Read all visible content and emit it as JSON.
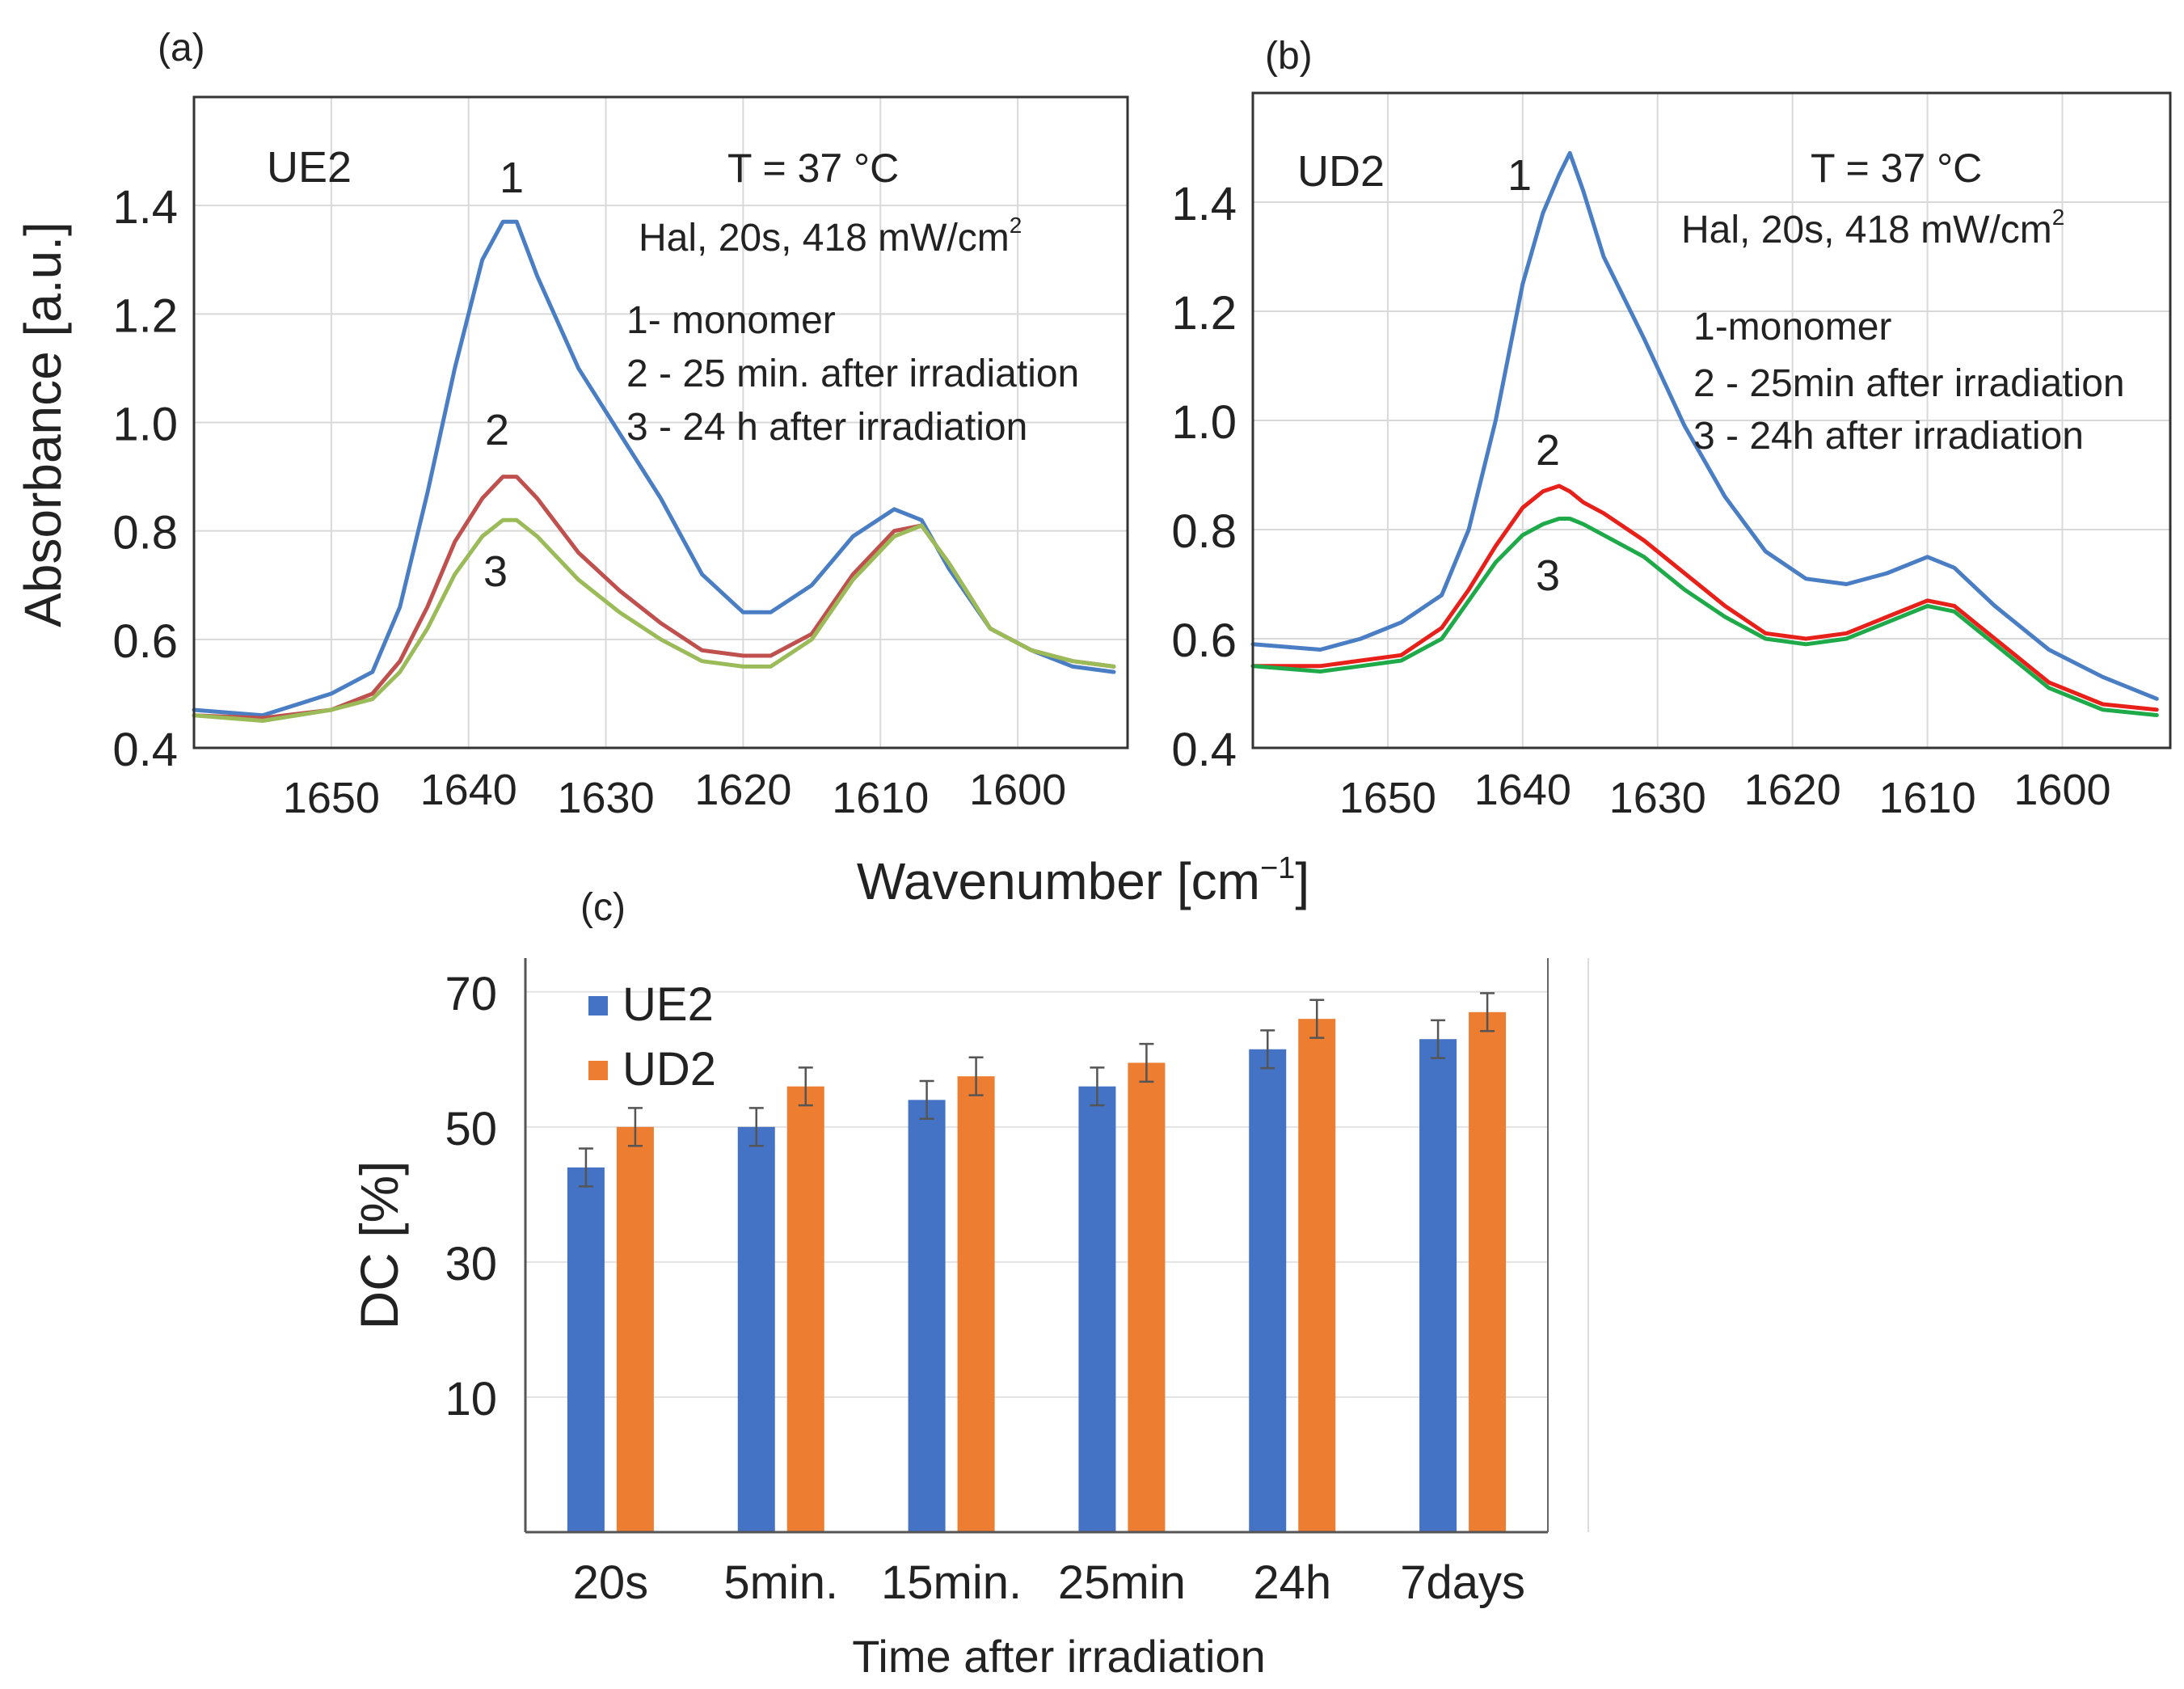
{
  "shared": {
    "xlabel_main": "Wavenumber [cm",
    "xlabel_sup": "−1",
    "xlabel_end": "]",
    "ylabel_ab": "Absorbance [a.u.]"
  },
  "chart_data": [
    {
      "type": "line",
      "panel": "(a)",
      "sample": "UE2",
      "condition_temp": "T = 37 °C",
      "condition_light": "Hal, 20s,  418 mW/cm",
      "condition_light_sup": "2",
      "legend": [
        "1- monomer",
        "2 - 25 min. after irradiation",
        "3 - 24 h after irradiation"
      ],
      "curve_labels": [
        "1",
        "2",
        "3"
      ],
      "xlabel": "Wavenumber [cm⁻¹]",
      "ylabel": "Absorbance [a.u.]",
      "xlim": [
        1660,
        1592
      ],
      "ylim": [
        0.4,
        1.6
      ],
      "x_ticks": [
        "1650",
        "1640",
        "1630",
        "1620",
        "1610",
        "1600"
      ],
      "y_ticks": [
        "0.4",
        "0.6",
        "0.8",
        "1.0",
        "1.2",
        "1.4"
      ],
      "series": [
        {
          "name": "1",
          "color": "#4a7ec4",
          "x": [
            1660,
            1655,
            1650,
            1647,
            1645,
            1643,
            1641,
            1639,
            1637.5,
            1636.5,
            1635,
            1632,
            1629,
            1626,
            1623,
            1620,
            1618,
            1615,
            1612,
            1609,
            1607,
            1605,
            1602,
            1599,
            1596,
            1593
          ],
          "y": [
            0.47,
            0.46,
            0.5,
            0.54,
            0.66,
            0.87,
            1.1,
            1.3,
            1.37,
            1.37,
            1.27,
            1.1,
            0.98,
            0.86,
            0.72,
            0.65,
            0.65,
            0.7,
            0.79,
            0.84,
            0.82,
            0.73,
            0.62,
            0.58,
            0.55,
            0.54
          ]
        },
        {
          "name": "2",
          "color": "#c0504d",
          "x": [
            1660,
            1655,
            1650,
            1647,
            1645,
            1643,
            1641,
            1639,
            1637.5,
            1636.5,
            1635,
            1632,
            1629,
            1626,
            1623,
            1620,
            1618,
            1615,
            1612,
            1609,
            1607,
            1605,
            1602,
            1599,
            1596,
            1593
          ],
          "y": [
            0.46,
            0.455,
            0.47,
            0.5,
            0.56,
            0.66,
            0.78,
            0.86,
            0.9,
            0.9,
            0.86,
            0.76,
            0.69,
            0.63,
            0.58,
            0.57,
            0.57,
            0.61,
            0.72,
            0.8,
            0.81,
            0.74,
            0.62,
            0.58,
            0.56,
            0.55
          ]
        },
        {
          "name": "3",
          "color": "#9bbb59",
          "x": [
            1660,
            1655,
            1650,
            1647,
            1645,
            1643,
            1641,
            1639,
            1637.5,
            1636.5,
            1635,
            1632,
            1629,
            1626,
            1623,
            1620,
            1618,
            1615,
            1612,
            1609,
            1607,
            1605,
            1602,
            1599,
            1596,
            1593
          ],
          "y": [
            0.46,
            0.45,
            0.47,
            0.49,
            0.54,
            0.62,
            0.72,
            0.79,
            0.82,
            0.82,
            0.79,
            0.71,
            0.65,
            0.6,
            0.56,
            0.55,
            0.55,
            0.6,
            0.71,
            0.79,
            0.81,
            0.74,
            0.62,
            0.58,
            0.56,
            0.55
          ]
        }
      ]
    },
    {
      "type": "line",
      "panel": "(b)",
      "sample": "UD2",
      "condition_temp": "T = 37 °C",
      "condition_light": "Hal, 20s,  418 mW/cm",
      "condition_light_sup": "2",
      "legend": [
        "1-monomer",
        "2 - 25min after irradiation",
        "3 - 24h after irradiation"
      ],
      "curve_labels": [
        "1",
        "2",
        "3"
      ],
      "xlabel": "Wavenumber [cm⁻¹]",
      "ylabel": "",
      "xlim": [
        1660,
        1592
      ],
      "ylim": [
        0.4,
        1.6
      ],
      "x_ticks": [
        "1650",
        "1640",
        "1630",
        "1620",
        "1610",
        "1600"
      ],
      "y_ticks": [
        "0.4",
        "0.6",
        "0.8",
        "1.0",
        "1.2",
        "1.4"
      ],
      "series": [
        {
          "name": "1",
          "color": "#4a7ec4",
          "x": [
            1660,
            1655,
            1652,
            1649,
            1646,
            1644,
            1642,
            1640,
            1638.5,
            1637.3,
            1636.5,
            1635.5,
            1634,
            1631,
            1628,
            1625,
            1622,
            1619,
            1616,
            1613,
            1610,
            1608,
            1605,
            1601,
            1597,
            1593
          ],
          "y": [
            0.59,
            0.58,
            0.6,
            0.63,
            0.68,
            0.8,
            1.0,
            1.25,
            1.38,
            1.45,
            1.49,
            1.42,
            1.3,
            1.15,
            0.99,
            0.86,
            0.76,
            0.71,
            0.7,
            0.72,
            0.75,
            0.73,
            0.66,
            0.58,
            0.53,
            0.49
          ]
        },
        {
          "name": "2",
          "color": "#e8201a",
          "x": [
            1660,
            1655,
            1652,
            1649,
            1646,
            1644,
            1642,
            1640,
            1638.5,
            1637.3,
            1636.5,
            1635.5,
            1634,
            1631,
            1628,
            1625,
            1622,
            1619,
            1616,
            1613,
            1610,
            1608,
            1605,
            1601,
            1597,
            1593
          ],
          "y": [
            0.55,
            0.55,
            0.56,
            0.57,
            0.62,
            0.69,
            0.77,
            0.84,
            0.87,
            0.88,
            0.87,
            0.85,
            0.83,
            0.78,
            0.72,
            0.66,
            0.61,
            0.6,
            0.61,
            0.64,
            0.67,
            0.66,
            0.6,
            0.52,
            0.48,
            0.47
          ]
        },
        {
          "name": "3",
          "color": "#1faa4a",
          "x": [
            1660,
            1655,
            1652,
            1649,
            1646,
            1644,
            1642,
            1640,
            1638.5,
            1637.3,
            1636.5,
            1635.5,
            1634,
            1631,
            1628,
            1625,
            1622,
            1619,
            1616,
            1613,
            1610,
            1608,
            1605,
            1601,
            1597,
            1593
          ],
          "y": [
            0.55,
            0.54,
            0.55,
            0.56,
            0.6,
            0.67,
            0.74,
            0.79,
            0.81,
            0.82,
            0.82,
            0.81,
            0.79,
            0.75,
            0.69,
            0.64,
            0.6,
            0.59,
            0.6,
            0.63,
            0.66,
            0.65,
            0.59,
            0.51,
            0.47,
            0.46
          ]
        }
      ]
    },
    {
      "type": "bar",
      "panel": "(c)",
      "title": "",
      "xlabel": "Time after irradiation",
      "ylabel": "DC [%]",
      "categories": [
        "20s",
        "5min.",
        "15min.",
        "25min",
        "24h",
        "7days"
      ],
      "ylim": [
        -10,
        75
      ],
      "y_ticks": [
        "10",
        "30",
        "50",
        "70"
      ],
      "grid": true,
      "legend_position": "top-left",
      "series": [
        {
          "name": "UE2",
          "color": "#4472c4",
          "values": [
            44,
            50,
            54,
            56,
            61.5,
            63
          ],
          "errors": [
            2.8,
            2.8,
            2.8,
            2.8,
            2.8,
            2.8
          ]
        },
        {
          "name": "UD2",
          "color": "#ed7d31",
          "values": [
            50,
            56,
            57.5,
            59.5,
            66,
            67
          ],
          "errors": [
            2.8,
            2.8,
            2.8,
            2.8,
            2.8,
            2.8
          ]
        }
      ]
    }
  ]
}
